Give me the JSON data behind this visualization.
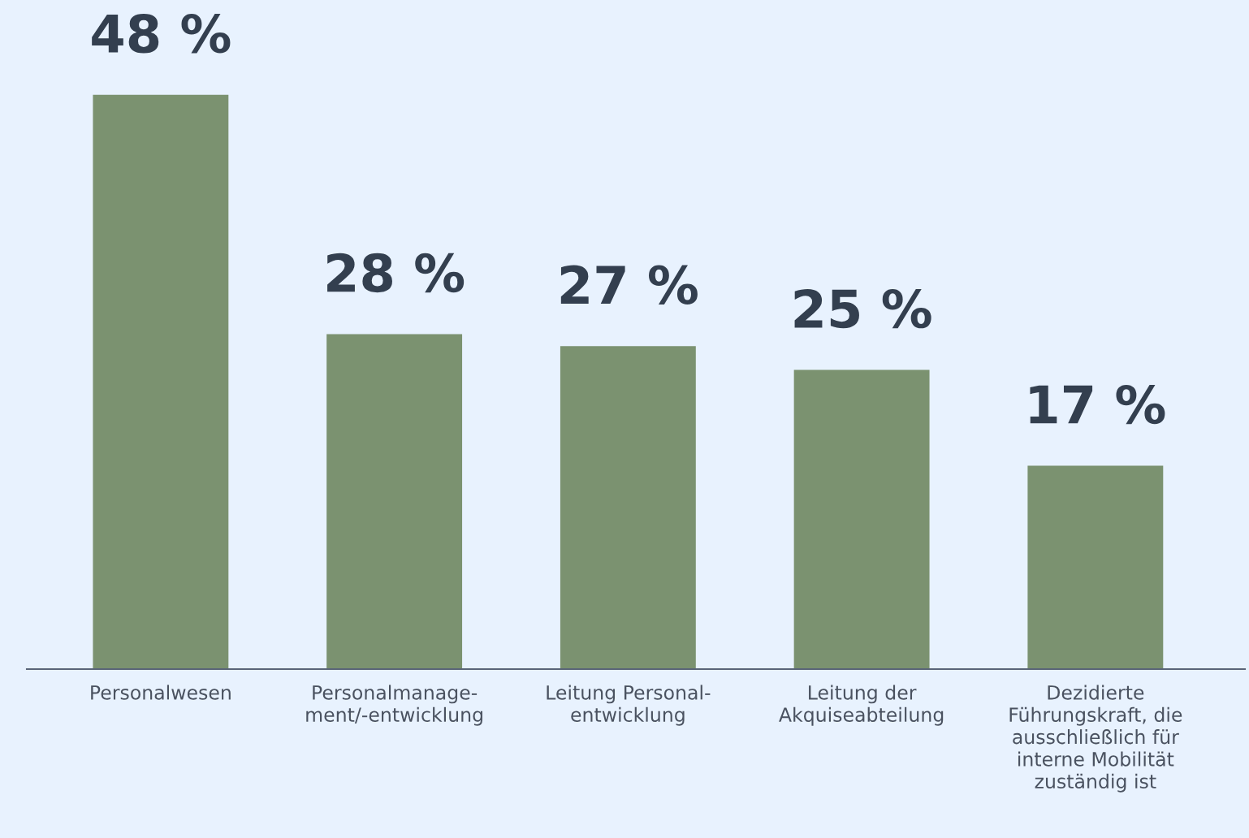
{
  "chart_data": {
    "type": "bar",
    "categories": [
      "Personalwesen",
      "Personalmanage-\nment/-entwicklung",
      "Leitung Personal-\nentwicklung",
      "Leitung der\nAkquiseabteilung",
      "Dezidierte\nFührungskraft, die\nausschließlich für\ninterne Mobilität\nzuständig ist"
    ],
    "values": [
      48,
      28,
      27,
      25,
      17
    ],
    "value_labels": [
      "48 %",
      "28 %",
      "27 %",
      "25 %",
      "17 %"
    ],
    "color": "#7b9270",
    "legend": false
  }
}
